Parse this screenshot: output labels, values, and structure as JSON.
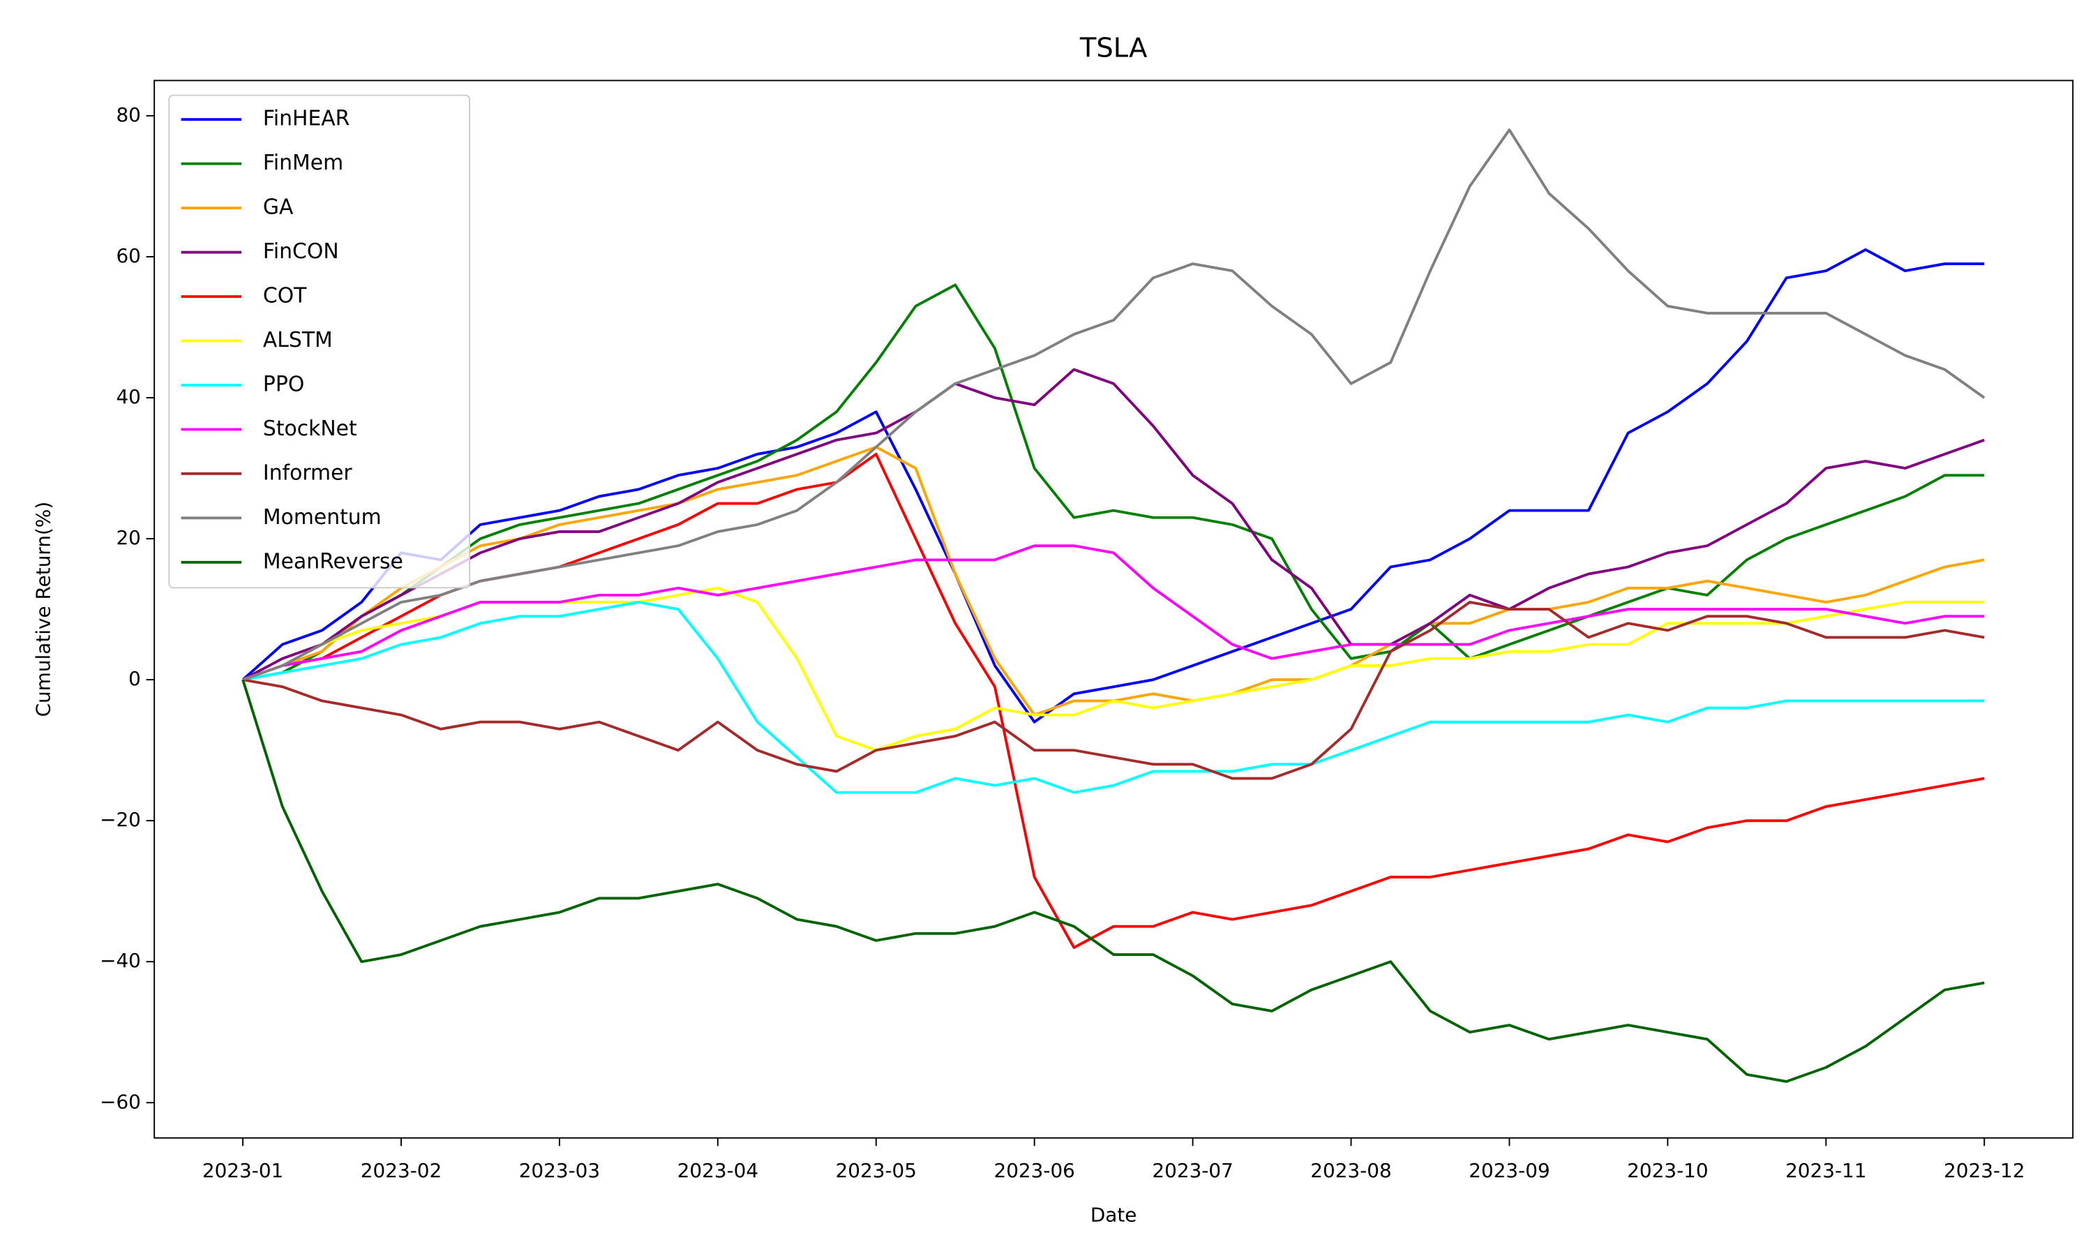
{
  "chart_data": {
    "type": "line",
    "title": "TSLA",
    "xlabel": "Date",
    "ylabel": "Cumulative Return(%)",
    "x": [
      "2023-01",
      null,
      null,
      null,
      "2023-02",
      null,
      null,
      null,
      "2023-03",
      null,
      null,
      null,
      "2023-04",
      null,
      null,
      null,
      "2023-05",
      null,
      null,
      null,
      "2023-06",
      null,
      null,
      null,
      "2023-07",
      null,
      null,
      null,
      "2023-08",
      null,
      null,
      null,
      "2023-09",
      null,
      null,
      null,
      "2023-10",
      null,
      null,
      null,
      "2023-11",
      null,
      null,
      null,
      "2023-12"
    ],
    "ylim": [
      -65,
      85
    ],
    "yticks": [
      {
        "value": -60,
        "label": "−60"
      },
      {
        "value": -40,
        "label": "−40"
      },
      {
        "value": -20,
        "label": "−20"
      },
      0,
      20,
      40,
      60,
      80
    ],
    "legend": "upper left",
    "series": [
      {
        "name": "FinHEAR",
        "color": "#0000ff",
        "values": [
          0,
          5,
          7,
          11,
          18,
          17,
          22,
          23,
          24,
          26,
          27,
          29,
          30,
          32,
          33,
          35,
          38,
          27,
          15,
          2,
          -6,
          -2,
          -1,
          0,
          2,
          4,
          6,
          8,
          10,
          16,
          17,
          20,
          24,
          24,
          24,
          35,
          38,
          42,
          48,
          57,
          58,
          61,
          58,
          59,
          59
        ]
      },
      {
        "name": "FinMem",
        "color": "#008000",
        "values": [
          0,
          1,
          4,
          9,
          12,
          16,
          20,
          22,
          23,
          24,
          25,
          27,
          29,
          31,
          34,
          38,
          45,
          53,
          56,
          47,
          30,
          23,
          24,
          23,
          23,
          22,
          20,
          10,
          3,
          4,
          8,
          3,
          5,
          7,
          9,
          11,
          13,
          12,
          17,
          20,
          22,
          24,
          26,
          29,
          29
        ]
      },
      {
        "name": "GA",
        "color": "#ffa500",
        "values": [
          0,
          2,
          4,
          9,
          13,
          16,
          19,
          20,
          22,
          23,
          24,
          25,
          27,
          28,
          29,
          31,
          33,
          30,
          15,
          3,
          -5,
          -3,
          -3,
          -2,
          -3,
          -2,
          0,
          0,
          2,
          5,
          8,
          8,
          10,
          10,
          11,
          13,
          13,
          14,
          13,
          12,
          11,
          12,
          14,
          16,
          17
        ]
      },
      {
        "name": "FinCON",
        "color": "#800080",
        "values": [
          0,
          3,
          5,
          9,
          12,
          15,
          18,
          20,
          21,
          21,
          23,
          25,
          28,
          30,
          32,
          34,
          35,
          38,
          42,
          40,
          39,
          44,
          42,
          36,
          29,
          25,
          17,
          13,
          5,
          5,
          8,
          12,
          10,
          13,
          15,
          16,
          18,
          19,
          22,
          25,
          30,
          31,
          30,
          32,
          34
        ]
      },
      {
        "name": "COT",
        "color": "#ff0000",
        "values": [
          0,
          2,
          3,
          6,
          9,
          12,
          14,
          15,
          16,
          18,
          20,
          22,
          25,
          25,
          27,
          28,
          32,
          20,
          8,
          -1,
          -28,
          -38,
          -35,
          -35,
          -33,
          -34,
          -33,
          -32,
          -30,
          -28,
          -28,
          -27,
          -26,
          -25,
          -24,
          -22,
          -23,
          -21,
          -20,
          -20,
          -18,
          -17,
          -16,
          -15,
          -14
        ]
      },
      {
        "name": "ALSTM",
        "color": "#ffff00",
        "values": [
          0,
          2,
          5,
          7,
          8,
          9,
          11,
          11,
          11,
          11,
          11,
          12,
          13,
          11,
          3,
          -8,
          -10,
          -8,
          -7,
          -4,
          -5,
          -5,
          -3,
          -4,
          -3,
          -2,
          -1,
          0,
          2,
          2,
          3,
          3,
          4,
          4,
          5,
          5,
          8,
          8,
          8,
          8,
          9,
          10,
          11,
          11,
          11
        ]
      },
      {
        "name": "PPO",
        "color": "#00ffff",
        "values": [
          0,
          1,
          2,
          3,
          5,
          6,
          8,
          9,
          9,
          10,
          11,
          10,
          3,
          -6,
          -11,
          -16,
          -16,
          -16,
          -14,
          -15,
          -14,
          -16,
          -15,
          -13,
          -13,
          -13,
          -12,
          -12,
          -10,
          -8,
          -6,
          -6,
          -6,
          -6,
          -6,
          -5,
          -6,
          -4,
          -4,
          -3,
          -3,
          -3,
          -3,
          -3,
          -3
        ]
      },
      {
        "name": "StockNet",
        "color": "#ff00ff",
        "values": [
          0,
          2,
          3,
          4,
          7,
          9,
          11,
          11,
          11,
          12,
          12,
          13,
          12,
          13,
          14,
          15,
          16,
          17,
          17,
          17,
          19,
          19,
          18,
          13,
          9,
          5,
          3,
          4,
          5,
          5,
          5,
          5,
          7,
          8,
          9,
          10,
          10,
          10,
          10,
          10,
          10,
          9,
          8,
          9,
          9
        ]
      },
      {
        "name": "Informer",
        "color": "#a52a2a",
        "values": [
          0,
          -1,
          -3,
          -4,
          -5,
          -7,
          -6,
          -6,
          -7,
          -6,
          -8,
          -10,
          -6,
          -10,
          -12,
          -13,
          -10,
          -9,
          -8,
          -6,
          -10,
          -10,
          -11,
          -12,
          -12,
          -14,
          -14,
          -12,
          -7,
          4,
          7,
          11,
          10,
          10,
          6,
          8,
          7,
          9,
          9,
          8,
          6,
          6,
          6,
          7,
          6
        ]
      },
      {
        "name": "Momentum",
        "color": "#808080",
        "values": [
          0,
          2,
          5,
          8,
          11,
          12,
          14,
          15,
          16,
          17,
          18,
          19,
          21,
          22,
          24,
          28,
          33,
          38,
          42,
          44,
          46,
          49,
          51,
          57,
          59,
          58,
          53,
          49,
          42,
          45,
          58,
          70,
          78,
          69,
          64,
          58,
          53,
          52,
          52,
          52,
          52,
          49,
          46,
          44,
          40
        ]
      },
      {
        "name": "MeanReverse",
        "color": "#006400",
        "values": [
          0,
          -18,
          -30,
          -40,
          -39,
          -37,
          -35,
          -34,
          -33,
          -31,
          -31,
          -30,
          -29,
          -31,
          -34,
          -35,
          -37,
          -36,
          -36,
          -35,
          -33,
          -35,
          -39,
          -39,
          -42,
          -46,
          -47,
          -44,
          -42,
          -40,
          -47,
          -50,
          -49,
          -51,
          -50,
          -49,
          -50,
          -51,
          -56,
          -57,
          -55,
          -52,
          -48,
          -44,
          -43
        ]
      }
    ]
  }
}
